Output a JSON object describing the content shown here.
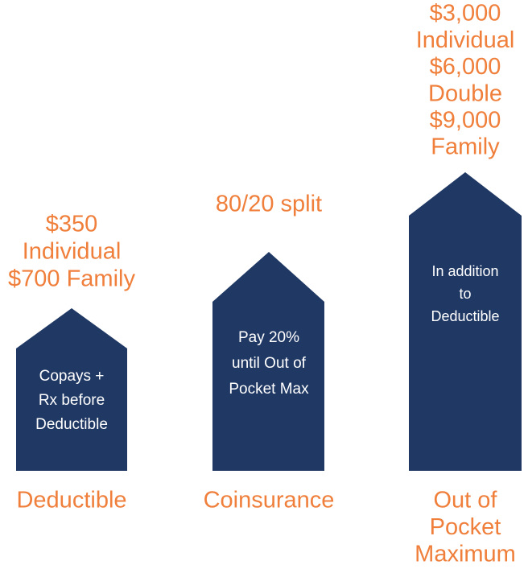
{
  "columns": [
    {
      "top_label": [
        "$350",
        "Individual",
        "$700 Family"
      ],
      "body": [
        "Copays +",
        "Rx before",
        "Deductible"
      ],
      "name": [
        "Deductible"
      ]
    },
    {
      "top_label": [
        "80/20 split"
      ],
      "body": [
        "Pay 20%",
        "until Out of",
        "Pocket Max"
      ],
      "name": [
        "Coinsurance"
      ]
    },
    {
      "top_label": [
        "$3,000",
        "Individual",
        "$6,000",
        "Double",
        "$9,000",
        "Family"
      ],
      "body": [
        "In addition",
        "to",
        "Deductible"
      ],
      "name": [
        "Out of",
        "Pocket",
        "Maximum"
      ]
    }
  ]
}
